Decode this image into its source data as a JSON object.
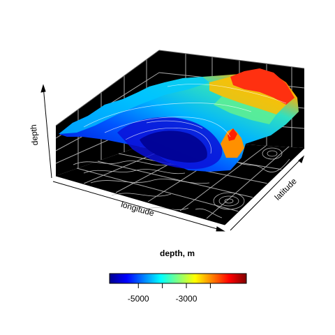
{
  "chart_data": {
    "type": "surface3d",
    "title": "",
    "xlabel": "longitude",
    "ylabel": "latitude",
    "zlabel": "depth",
    "panel_background": "#000000",
    "grid": true,
    "surface_colors": "jet",
    "contour_projection_on_floor": true,
    "colorbar": {
      "title": "depth, m",
      "range": [
        -6200,
        -500
      ],
      "ticks": [
        -5000,
        -3000
      ],
      "tick_labels": [
        "-5000",
        "-3000"
      ],
      "minor_ticks": [
        -4000,
        -2000
      ],
      "placement": "bottom",
      "colors": [
        "#00008F",
        "#0000FF",
        "#0080FF",
        "#00FFFF",
        "#80FF80",
        "#FFFF00",
        "#FF8000",
        "#FF0000",
        "#800000"
      ]
    }
  }
}
